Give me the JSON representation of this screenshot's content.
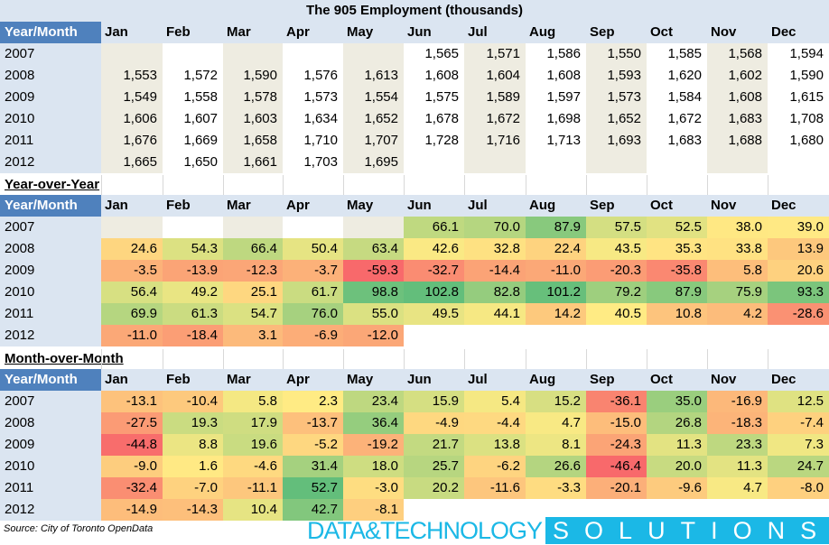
{
  "title": "The 905 Employment (thousands)",
  "corner_label": "Year/Month",
  "months": [
    "Jan",
    "Feb",
    "Mar",
    "Apr",
    "May",
    "Jun",
    "Jul",
    "Aug",
    "Sep",
    "Oct",
    "Nov",
    "Dec"
  ],
  "years": [
    "2007",
    "2008",
    "2009",
    "2010",
    "2011",
    "2012"
  ],
  "sections": {
    "yoy_title": "Year-over-Year",
    "mom_title": "Month-over-Month"
  },
  "source": "Source: City of Toronto OpenData",
  "logo": {
    "part1": "DATA&TECHNOLOGY",
    "part2": "SOLUTIONS"
  },
  "colors": {
    "header_bg": "#dbe5f1",
    "corner_bg": "#4f81bd",
    "beige": "#eeece1",
    "scale_low": "#f8696b",
    "scale_mid": "#ffeb84",
    "scale_high": "#63be7b",
    "logo": "#1bb8e6"
  },
  "chart_data": [
    {
      "type": "table",
      "title": "The 905 Employment (thousands)",
      "rows": [
        [
          "",
          "",
          "",
          "",
          "",
          "1,565",
          "1,571",
          "1,586",
          "1,550",
          "1,585",
          "1,568",
          "1,594"
        ],
        [
          "1,553",
          "1,572",
          "1,590",
          "1,576",
          "1,613",
          "1,608",
          "1,604",
          "1,608",
          "1,593",
          "1,620",
          "1,602",
          "1,590"
        ],
        [
          "1,549",
          "1,558",
          "1,578",
          "1,573",
          "1,554",
          "1,575",
          "1,589",
          "1,597",
          "1,573",
          "1,584",
          "1,608",
          "1,615"
        ],
        [
          "1,606",
          "1,607",
          "1,603",
          "1,634",
          "1,652",
          "1,678",
          "1,672",
          "1,698",
          "1,652",
          "1,672",
          "1,683",
          "1,708"
        ],
        [
          "1,676",
          "1,669",
          "1,658",
          "1,710",
          "1,707",
          "1,728",
          "1,716",
          "1,713",
          "1,693",
          "1,683",
          "1,688",
          "1,680"
        ],
        [
          "1,665",
          "1,650",
          "1,661",
          "1,703",
          "1,695",
          "",
          "",
          "",
          "",
          "",
          "",
          ""
        ]
      ]
    },
    {
      "type": "heatmap",
      "title": "Year-over-Year",
      "rows": [
        [
          null,
          null,
          null,
          null,
          null,
          "66.1",
          "70.0",
          "87.9",
          "57.5",
          "52.5",
          "38.0",
          "39.0"
        ],
        [
          "24.6",
          "54.3",
          "66.4",
          "50.4",
          "63.4",
          "42.6",
          "32.8",
          "22.4",
          "43.5",
          "35.3",
          "33.8",
          "13.9"
        ],
        [
          "-3.5",
          "-13.9",
          "-12.3",
          "-3.7",
          "-59.3",
          "-32.7",
          "-14.4",
          "-11.0",
          "-20.3",
          "-35.8",
          "5.8",
          "20.6"
        ],
        [
          "56.4",
          "49.2",
          "25.1",
          "61.7",
          "98.8",
          "102.8",
          "82.8",
          "101.2",
          "79.2",
          "87.9",
          "75.9",
          "93.3"
        ],
        [
          "69.9",
          "61.3",
          "54.7",
          "76.0",
          "55.0",
          "49.5",
          "44.1",
          "14.2",
          "40.5",
          "10.8",
          "4.2",
          "-28.6"
        ],
        [
          "-11.0",
          "-18.4",
          "3.1",
          "-6.9",
          "-12.0",
          null,
          null,
          null,
          null,
          null,
          null,
          null
        ]
      ]
    },
    {
      "type": "heatmap",
      "title": "Month-over-Month",
      "rows": [
        [
          "-13.1",
          "-10.4",
          "5.8",
          "2.3",
          "23.4",
          "15.9",
          "5.4",
          "15.2",
          "-36.1",
          "35.0",
          "-16.9",
          "12.5"
        ],
        [
          "-27.5",
          "19.3",
          "17.9",
          "-13.7",
          "36.4",
          "-4.9",
          "-4.4",
          "4.7",
          "-15.0",
          "26.8",
          "-18.3",
          "-7.4"
        ],
        [
          "-44.8",
          "8.8",
          "19.6",
          "-5.2",
          "-19.2",
          "21.7",
          "13.8",
          "8.1",
          "-24.3",
          "11.3",
          "23.3",
          "7.3"
        ],
        [
          "-9.0",
          "1.6",
          "-4.6",
          "31.4",
          "18.0",
          "25.7",
          "-6.2",
          "26.6",
          "-46.4",
          "20.0",
          "11.3",
          "24.7"
        ],
        [
          "-32.4",
          "-7.0",
          "-11.1",
          "52.7",
          "-3.0",
          "20.2",
          "-11.6",
          "-3.3",
          "-20.1",
          "-9.6",
          "4.7",
          "-8.0"
        ],
        [
          "-14.9",
          "-14.3",
          "10.4",
          "42.7",
          "-8.1",
          null,
          null,
          null,
          null,
          null,
          null,
          null
        ]
      ]
    }
  ]
}
